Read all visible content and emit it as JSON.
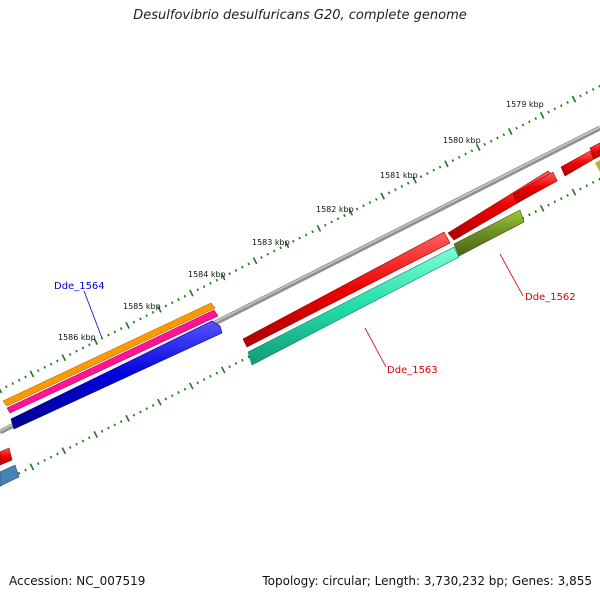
{
  "title": "Desulfovibrio desulfuricans G20, complete genome",
  "accession": "Accession: NC_007519",
  "summary": "Topology: circular; Length: 3,730,232 bp; Genes: 3,855",
  "tick_labels": [
    "1579 kbp",
    "1580 kbp",
    "1581 kbp",
    "1582 kbp",
    "1583 kbp",
    "1584 kbp",
    "1585 kbp",
    "1586 kbp"
  ],
  "gene_labels": [
    {
      "name": "Dde_1564",
      "color": "#0000cc"
    },
    {
      "name": "Dde_1562",
      "color": "#dd0000"
    },
    {
      "name": "Dde_1563",
      "color": "#dd0000"
    }
  ],
  "colors": {
    "backbone": "#808080",
    "ticks": "#1a7a1a",
    "red_gene": "#ee0000",
    "teal_gene": "#22ddaa",
    "olive_gene": "#6b8e23",
    "orange_gene": "#ff9900",
    "magenta_gene": "#ff1493",
    "blue_gene": "#0000dd",
    "steelblue_gene": "#4682b4"
  }
}
